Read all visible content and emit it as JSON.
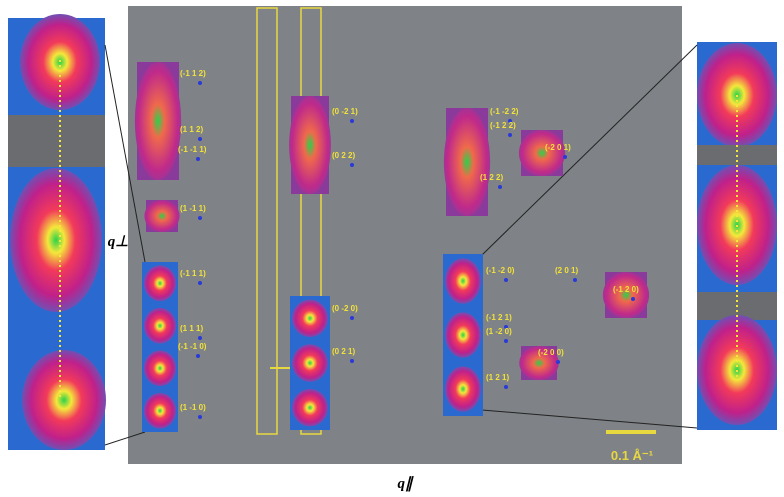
{
  "figure": {
    "axis_labels": {
      "vertical": "q⊥",
      "horizontal": "q∥"
    },
    "scale_bar": "0.1 Å⁻¹",
    "spot_labels": [
      "(-1 1 2)",
      "(1 1 2)",
      "(-1 -1 1)",
      "(1 -1 1)",
      "(-1 1 1)",
      "(1 1 1)",
      "(-1 -1 0)",
      "(1 -1 0)",
      "(0 -2 1)",
      "(0 2 2)",
      "(0 -2 0)",
      "(0 2 1)",
      "(-1 -2 2)",
      "(-1 2 2)",
      "(-2 0 1)",
      "(1 2 2)",
      "(-1 -2 0)",
      "(2 0 1)",
      "(-1 2 1)",
      "(-1 2 0)",
      "(1 -2 0)",
      "(-2 0 0)",
      "(1 2 1)"
    ]
  }
}
